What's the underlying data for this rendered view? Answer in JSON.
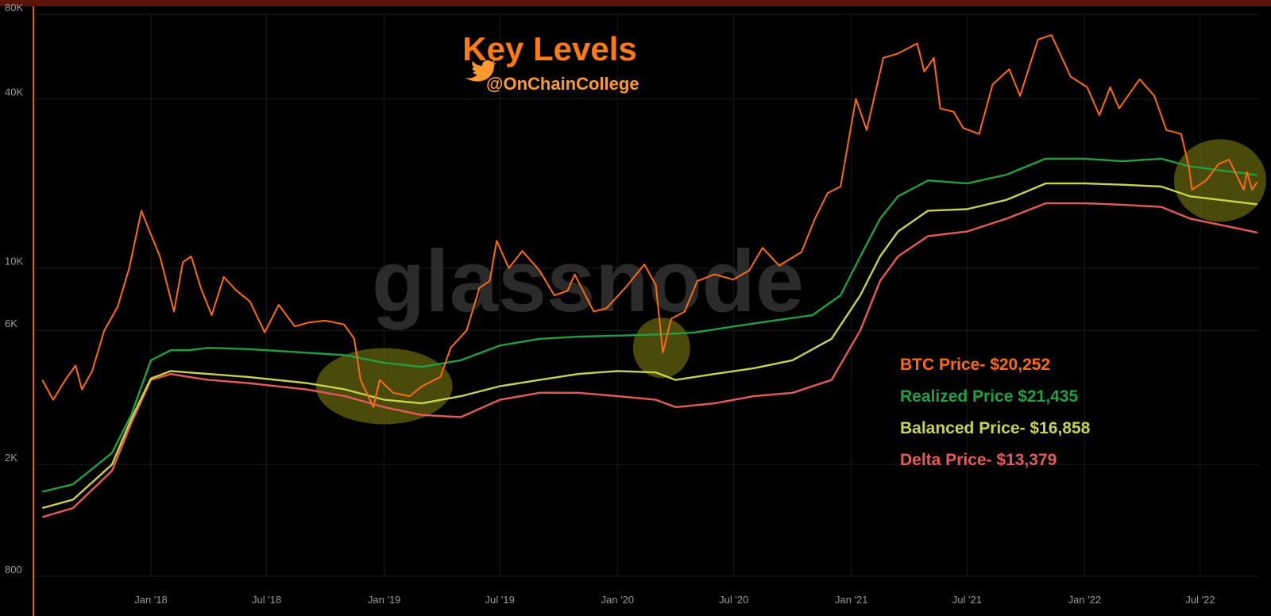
{
  "chart_data": {
    "type": "line",
    "title": "Key Levels",
    "subtitle": "@OnChainCollege",
    "watermark": "glassnode",
    "y_scale": "log",
    "ylim": [
      800,
      80000
    ],
    "y_ticks": [
      {
        "value": 800,
        "label": "800"
      },
      {
        "value": 2000,
        "label": "2K"
      },
      {
        "value": 6000,
        "label": "6K"
      },
      {
        "value": 10000,
        "label": "10K"
      },
      {
        "value": 40000,
        "label": "40K"
      },
      {
        "value": 80000,
        "label": "80K"
      }
    ],
    "x_range": [
      "2017-07-01",
      "2022-10-01"
    ],
    "x_ticks": [
      {
        "date": "2018-01-01",
        "label": "Jan '18"
      },
      {
        "date": "2018-07-01",
        "label": "Jul '18"
      },
      {
        "date": "2019-01-01",
        "label": "Jan '19"
      },
      {
        "date": "2019-07-01",
        "label": "Jul '19"
      },
      {
        "date": "2020-01-01",
        "label": "Jan '20"
      },
      {
        "date": "2020-07-01",
        "label": "Jul '20"
      },
      {
        "date": "2021-01-01",
        "label": "Jan '21"
      },
      {
        "date": "2021-07-01",
        "label": "Jul '21"
      },
      {
        "date": "2022-01-01",
        "label": "Jan '22"
      },
      {
        "date": "2022-07-01",
        "label": "Jul '22"
      }
    ],
    "grid": true,
    "legend_position": "bottom-right",
    "series": [
      {
        "name": "BTC Price",
        "legend_label": "BTC Price- $20,252",
        "color": "#ff6a10",
        "points": [
          [
            "2017-07-15",
            4000
          ],
          [
            "2017-08-01",
            3400
          ],
          [
            "2017-08-20",
            4000
          ],
          [
            "2017-09-05",
            4500
          ],
          [
            "2017-09-15",
            3700
          ],
          [
            "2017-10-01",
            4300
          ],
          [
            "2017-10-20",
            6000
          ],
          [
            "2017-11-10",
            7300
          ],
          [
            "2017-11-28",
            10000
          ],
          [
            "2017-12-17",
            16000
          ],
          [
            "2017-12-30",
            13500
          ],
          [
            "2018-01-15",
            11000
          ],
          [
            "2018-02-06",
            7000
          ],
          [
            "2018-02-20",
            10500
          ],
          [
            "2018-03-05",
            11000
          ],
          [
            "2018-03-20",
            8500
          ],
          [
            "2018-04-06",
            6800
          ],
          [
            "2018-04-25",
            9300
          ],
          [
            "2018-05-15",
            8300
          ],
          [
            "2018-06-05",
            7600
          ],
          [
            "2018-06-28",
            5900
          ],
          [
            "2018-07-20",
            7400
          ],
          [
            "2018-08-14",
            6200
          ],
          [
            "2018-09-05",
            6400
          ],
          [
            "2018-10-01",
            6500
          ],
          [
            "2018-10-30",
            6300
          ],
          [
            "2018-11-15",
            5600
          ],
          [
            "2018-11-25",
            4000
          ],
          [
            "2018-12-15",
            3200
          ],
          [
            "2018-12-25",
            4000
          ],
          [
            "2019-01-15",
            3600
          ],
          [
            "2019-02-10",
            3500
          ],
          [
            "2019-03-01",
            3800
          ],
          [
            "2019-03-30",
            4100
          ],
          [
            "2019-04-15",
            5200
          ],
          [
            "2019-05-10",
            6000
          ],
          [
            "2019-05-30",
            8500
          ],
          [
            "2019-06-15",
            9000
          ],
          [
            "2019-06-26",
            12500
          ],
          [
            "2019-07-15",
            10000
          ],
          [
            "2019-08-05",
            11500
          ],
          [
            "2019-09-01",
            9800
          ],
          [
            "2019-09-24",
            8000
          ],
          [
            "2019-10-15",
            8300
          ],
          [
            "2019-10-26",
            9500
          ],
          [
            "2019-11-25",
            7000
          ],
          [
            "2019-12-15",
            7200
          ],
          [
            "2020-01-15",
            8600
          ],
          [
            "2020-02-12",
            10300
          ],
          [
            "2020-03-01",
            8700
          ],
          [
            "2020-03-12",
            5000
          ],
          [
            "2020-03-25",
            6600
          ],
          [
            "2020-04-15",
            7000
          ],
          [
            "2020-05-05",
            9000
          ],
          [
            "2020-06-01",
            9500
          ],
          [
            "2020-06-30",
            9100
          ],
          [
            "2020-07-25",
            9800
          ],
          [
            "2020-08-15",
            11800
          ],
          [
            "2020-09-10",
            10200
          ],
          [
            "2020-10-15",
            11400
          ],
          [
            "2020-11-05",
            15000
          ],
          [
            "2020-11-25",
            18500
          ],
          [
            "2020-12-15",
            19500
          ],
          [
            "2021-01-08",
            40000
          ],
          [
            "2021-01-25",
            31000
          ],
          [
            "2021-02-20",
            56000
          ],
          [
            "2021-03-15",
            58000
          ],
          [
            "2021-04-14",
            63000
          ],
          [
            "2021-04-25",
            50000
          ],
          [
            "2021-05-10",
            56000
          ],
          [
            "2021-05-20",
            37000
          ],
          [
            "2021-06-10",
            36000
          ],
          [
            "2021-06-25",
            31500
          ],
          [
            "2021-07-20",
            30000
          ],
          [
            "2021-08-10",
            45000
          ],
          [
            "2021-09-05",
            51000
          ],
          [
            "2021-09-22",
            41000
          ],
          [
            "2021-10-20",
            65000
          ],
          [
            "2021-11-10",
            67500
          ],
          [
            "2021-11-25",
            57000
          ],
          [
            "2021-12-10",
            48000
          ],
          [
            "2022-01-05",
            44000
          ],
          [
            "2022-01-24",
            35000
          ],
          [
            "2022-02-10",
            44000
          ],
          [
            "2022-02-24",
            37000
          ],
          [
            "2022-03-28",
            47000
          ],
          [
            "2022-04-20",
            41000
          ],
          [
            "2022-05-09",
            31000
          ],
          [
            "2022-06-01",
            30000
          ],
          [
            "2022-06-13",
            23000
          ],
          [
            "2022-06-18",
            19000
          ],
          [
            "2022-07-10",
            20500
          ],
          [
            "2022-07-30",
            23500
          ],
          [
            "2022-08-15",
            24300
          ],
          [
            "2022-09-07",
            19000
          ],
          [
            "2022-09-12",
            22000
          ],
          [
            "2022-09-20",
            19000
          ],
          [
            "2022-09-28",
            20252
          ]
        ]
      },
      {
        "name": "Realized Price",
        "legend_label": "Realized Price $21,435",
        "color": "#20a040",
        "points": [
          [
            "2017-07-15",
            1600
          ],
          [
            "2017-09-01",
            1700
          ],
          [
            "2017-11-01",
            2200
          ],
          [
            "2017-12-01",
            3000
          ],
          [
            "2018-01-01",
            4700
          ],
          [
            "2018-02-01",
            5100
          ],
          [
            "2018-03-01",
            5100
          ],
          [
            "2018-04-01",
            5200
          ],
          [
            "2018-06-01",
            5150
          ],
          [
            "2018-09-01",
            5000
          ],
          [
            "2018-11-01",
            4900
          ],
          [
            "2019-01-01",
            4600
          ],
          [
            "2019-03-01",
            4450
          ],
          [
            "2019-05-01",
            4700
          ],
          [
            "2019-07-01",
            5300
          ],
          [
            "2019-09-01",
            5600
          ],
          [
            "2019-11-01",
            5700
          ],
          [
            "2020-01-01",
            5750
          ],
          [
            "2020-03-01",
            5800
          ],
          [
            "2020-05-01",
            5900
          ],
          [
            "2020-07-01",
            6200
          ],
          [
            "2020-09-01",
            6500
          ],
          [
            "2020-11-01",
            6800
          ],
          [
            "2020-12-15",
            8000
          ],
          [
            "2021-01-15",
            11000
          ],
          [
            "2021-02-15",
            15000
          ],
          [
            "2021-03-15",
            18000
          ],
          [
            "2021-05-01",
            20500
          ],
          [
            "2021-07-01",
            20000
          ],
          [
            "2021-09-01",
            21500
          ],
          [
            "2021-11-01",
            24500
          ],
          [
            "2022-01-01",
            24500
          ],
          [
            "2022-03-01",
            24000
          ],
          [
            "2022-05-01",
            24500
          ],
          [
            "2022-06-15",
            23000
          ],
          [
            "2022-09-28",
            21435
          ]
        ]
      },
      {
        "name": "Balanced Price",
        "legend_label": "Balanced Price- $16,858",
        "color": "#c8d448",
        "points": [
          [
            "2017-07-15",
            1400
          ],
          [
            "2017-09-01",
            1500
          ],
          [
            "2017-11-01",
            2000
          ],
          [
            "2017-12-01",
            2900
          ],
          [
            "2018-01-01",
            4050
          ],
          [
            "2018-02-01",
            4300
          ],
          [
            "2018-03-01",
            4250
          ],
          [
            "2018-04-01",
            4200
          ],
          [
            "2018-06-01",
            4100
          ],
          [
            "2018-09-01",
            3900
          ],
          [
            "2018-11-01",
            3700
          ],
          [
            "2019-01-01",
            3400
          ],
          [
            "2019-03-01",
            3300
          ],
          [
            "2019-05-01",
            3500
          ],
          [
            "2019-07-01",
            3800
          ],
          [
            "2019-09-01",
            4000
          ],
          [
            "2019-11-01",
            4200
          ],
          [
            "2020-01-01",
            4300
          ],
          [
            "2020-03-01",
            4250
          ],
          [
            "2020-04-01",
            4000
          ],
          [
            "2020-06-01",
            4200
          ],
          [
            "2020-08-01",
            4400
          ],
          [
            "2020-10-01",
            4700
          ],
          [
            "2020-12-01",
            5600
          ],
          [
            "2021-01-15",
            8000
          ],
          [
            "2021-02-15",
            11000
          ],
          [
            "2021-03-15",
            13500
          ],
          [
            "2021-05-01",
            16000
          ],
          [
            "2021-07-01",
            16200
          ],
          [
            "2021-09-01",
            17500
          ],
          [
            "2021-11-01",
            20000
          ],
          [
            "2022-01-01",
            20000
          ],
          [
            "2022-03-01",
            19800
          ],
          [
            "2022-05-01",
            19500
          ],
          [
            "2022-06-15",
            18000
          ],
          [
            "2022-09-28",
            16858
          ]
        ]
      },
      {
        "name": "Delta Price",
        "legend_label": "Delta Price- $13,379",
        "color": "#e85a5a",
        "points": [
          [
            "2017-07-15",
            1300
          ],
          [
            "2017-09-01",
            1400
          ],
          [
            "2017-11-01",
            1900
          ],
          [
            "2017-12-01",
            2800
          ],
          [
            "2018-01-01",
            4000
          ],
          [
            "2018-02-01",
            4200
          ],
          [
            "2018-03-01",
            4100
          ],
          [
            "2018-04-01",
            4000
          ],
          [
            "2018-06-01",
            3900
          ],
          [
            "2018-09-01",
            3700
          ],
          [
            "2018-11-01",
            3500
          ],
          [
            "2019-01-01",
            3200
          ],
          [
            "2019-03-01",
            3000
          ],
          [
            "2019-05-01",
            2950
          ],
          [
            "2019-07-01",
            3400
          ],
          [
            "2019-09-01",
            3600
          ],
          [
            "2019-11-01",
            3600
          ],
          [
            "2020-01-01",
            3500
          ],
          [
            "2020-03-01",
            3400
          ],
          [
            "2020-04-01",
            3200
          ],
          [
            "2020-06-01",
            3300
          ],
          [
            "2020-08-01",
            3500
          ],
          [
            "2020-10-01",
            3600
          ],
          [
            "2020-12-01",
            4000
          ],
          [
            "2021-01-15",
            6000
          ],
          [
            "2021-02-15",
            9000
          ],
          [
            "2021-03-15",
            11000
          ],
          [
            "2021-05-01",
            13000
          ],
          [
            "2021-07-01",
            13500
          ],
          [
            "2021-09-01",
            15000
          ],
          [
            "2021-11-01",
            17000
          ],
          [
            "2022-01-01",
            17000
          ],
          [
            "2022-03-01",
            16800
          ],
          [
            "2022-05-01",
            16500
          ],
          [
            "2022-06-15",
            15000
          ],
          [
            "2022-09-28",
            13379
          ]
        ]
      }
    ],
    "highlights": [
      {
        "center": [
          "2019-01-01",
          3800
        ],
        "color": "#6a6a10"
      },
      {
        "center": [
          "2020-03-10",
          5200
        ],
        "color": "#6a6a10"
      },
      {
        "center": [
          "2022-08-01",
          20500
        ],
        "color": "#6a6a10"
      }
    ]
  }
}
